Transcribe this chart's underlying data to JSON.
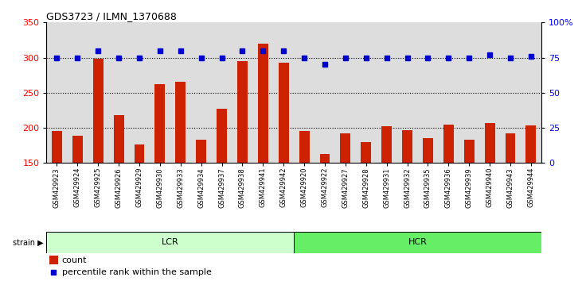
{
  "title": "GDS3723 / ILMN_1370688",
  "samples_lcr": [
    "GSM429923",
    "GSM429924",
    "GSM429925",
    "GSM429926",
    "GSM429929",
    "GSM429930",
    "GSM429933",
    "GSM429934",
    "GSM429937",
    "GSM429938",
    "GSM429941",
    "GSM429942"
  ],
  "samples_hcr": [
    "GSM429920",
    "GSM429922",
    "GSM429927",
    "GSM429928",
    "GSM429931",
    "GSM429932",
    "GSM429935",
    "GSM429936",
    "GSM429939",
    "GSM429940",
    "GSM429943",
    "GSM429944"
  ],
  "counts_lcr": [
    196,
    189,
    298,
    218,
    176,
    262,
    266,
    183,
    227,
    295,
    320,
    293
  ],
  "counts_hcr": [
    195,
    163,
    192,
    180,
    202,
    197,
    185,
    205,
    183,
    207,
    192,
    203
  ],
  "pct_lcr": [
    75,
    75,
    80,
    75,
    75,
    80,
    80,
    75,
    75,
    80,
    80,
    80
  ],
  "pct_hcr": [
    75,
    70,
    75,
    75,
    75,
    75,
    75,
    75,
    75,
    77,
    75,
    76
  ],
  "ylim_left": [
    150,
    350
  ],
  "ylim_right": [
    0,
    100
  ],
  "yticks_left": [
    150,
    200,
    250,
    300,
    350
  ],
  "yticks_right": [
    0,
    25,
    50,
    75,
    100
  ],
  "bar_color": "#cc2200",
  "dot_color": "#0000cc",
  "lcr_color": "#ccffcc",
  "hcr_color": "#66ee66",
  "col_bg_color": "#dddddd",
  "legend_count_label": "count",
  "legend_pct_label": "percentile rank within the sample",
  "strain_label": "strain",
  "lcr_label": "LCR",
  "hcr_label": "HCR"
}
